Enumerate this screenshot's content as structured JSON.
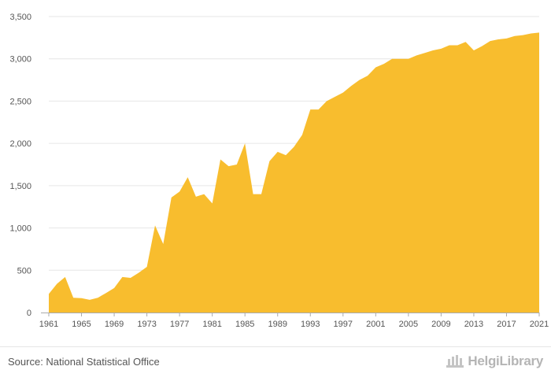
{
  "chart_data": {
    "type": "area",
    "color": "#f8bd2e",
    "title": "",
    "xlabel": "",
    "ylabel": "",
    "ylim": [
      0,
      3500
    ],
    "xlim": [
      1961,
      2021
    ],
    "yticks": [
      0,
      500,
      1000,
      1500,
      2000,
      2500,
      3000,
      3500
    ],
    "ytick_labels": [
      "0",
      "500",
      "1,000",
      "1,500",
      "2,000",
      "2,500",
      "3,000",
      "3,500"
    ],
    "xticks": [
      1961,
      1965,
      1969,
      1973,
      1977,
      1981,
      1985,
      1989,
      1993,
      1997,
      2001,
      2005,
      2009,
      2013,
      2017,
      2021
    ],
    "xtick_labels": [
      "1961",
      "1965",
      "1969",
      "1973",
      "1977",
      "1981",
      "1985",
      "1989",
      "1993",
      "1997",
      "2001",
      "2005",
      "2009",
      "2013",
      "2017",
      "2021"
    ],
    "grid": true,
    "legend": "none",
    "x": [
      1961,
      1962,
      1963,
      1964,
      1965,
      1966,
      1967,
      1968,
      1969,
      1970,
      1971,
      1972,
      1973,
      1974,
      1975,
      1976,
      1977,
      1978,
      1979,
      1980,
      1981,
      1982,
      1983,
      1984,
      1985,
      1986,
      1987,
      1988,
      1989,
      1990,
      1991,
      1992,
      1993,
      1994,
      1995,
      1996,
      1997,
      1998,
      1999,
      2000,
      2001,
      2002,
      2003,
      2004,
      2005,
      2006,
      2007,
      2008,
      2009,
      2010,
      2011,
      2012,
      2013,
      2014,
      2015,
      2016,
      2017,
      2018,
      2019,
      2020,
      2021
    ],
    "y": [
      220,
      340,
      420,
      175,
      170,
      150,
      175,
      230,
      290,
      420,
      410,
      470,
      540,
      1030,
      810,
      1360,
      1430,
      1600,
      1370,
      1400,
      1290,
      1810,
      1730,
      1750,
      2000,
      1400,
      1400,
      1790,
      1900,
      1860,
      1960,
      2100,
      2400,
      2400,
      2500,
      2550,
      2600,
      2680,
      2750,
      2800,
      2900,
      2940,
      3000,
      3000,
      3000,
      3040,
      3070,
      3100,
      3120,
      3160,
      3160,
      3200,
      3100,
      3150,
      3210,
      3230,
      3240,
      3270,
      3280,
      3300,
      3310
    ]
  },
  "footer": {
    "source": "Source: National Statistical Office",
    "brand": "HelgiLibrary"
  }
}
